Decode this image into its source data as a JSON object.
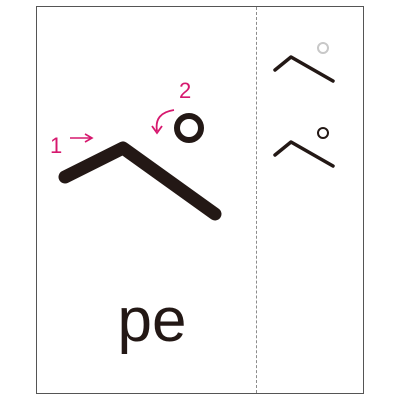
{
  "card": {
    "romaji": "pe",
    "stroke_order": [
      {
        "number": "1"
      },
      {
        "number": "2"
      }
    ]
  },
  "colors": {
    "ink": "#231815",
    "accent": "#d6186e",
    "faded_circle": "#c8c8c8",
    "border": "#555555",
    "divider": "#8c8c8c"
  },
  "icons": {
    "stroke_1_arrow": "right-arrow-icon",
    "stroke_2_arrow": "curved-counterclockwise-arrow-icon"
  }
}
